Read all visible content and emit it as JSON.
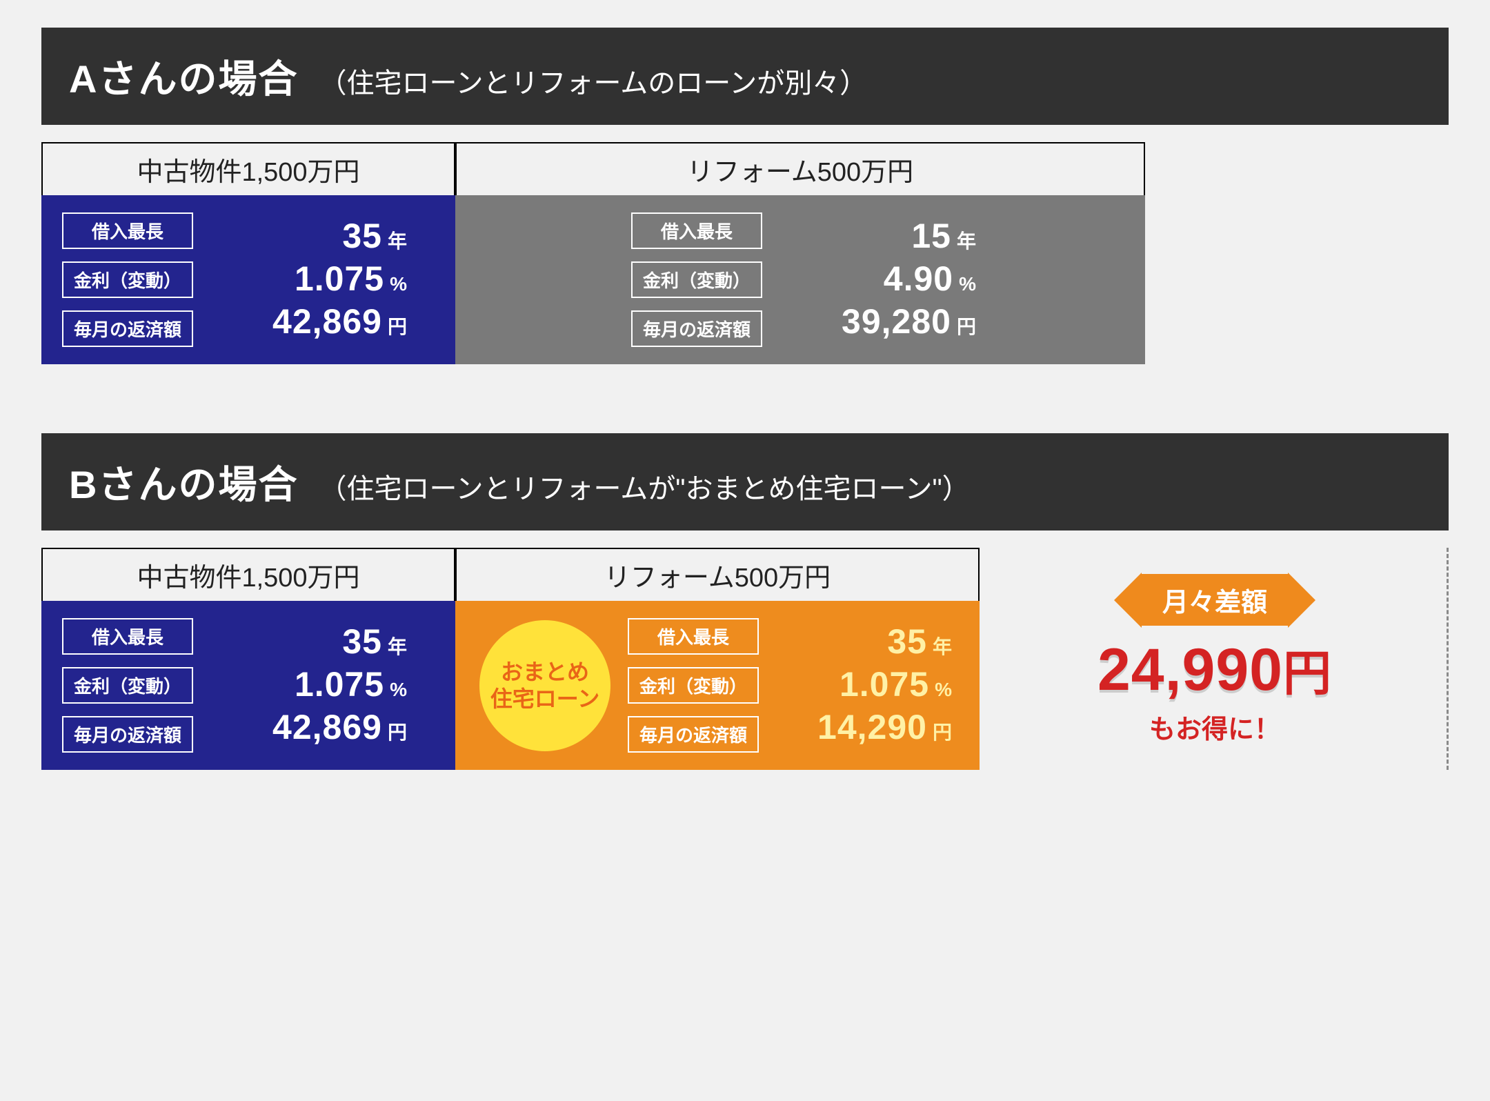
{
  "colors": {
    "page_bg": "#f1f1f1",
    "header_bg": "#313131",
    "header_text": "#ffffff",
    "panel_border": "#000000",
    "label_text": "#222222",
    "blue_panel_bg": "#23248e",
    "blue_panel_text": "#ffffff",
    "gray_panel_bg": "#7a7a7a",
    "gray_panel_text": "#ffffff",
    "orange_panel_bg": "#ee8c1e",
    "orange_panel_text": "#ffffff",
    "orange_value_text": "#fff1a6",
    "circle_bg": "#ffe23a",
    "circle_text": "#e96517",
    "arrow_color": "#ef8a1d",
    "savings_amount_color": "#d42323",
    "savings_caption_color": "#d42323",
    "dashed_border": "#8a8a8a"
  },
  "layout": {
    "section_a_blue_width": 600,
    "section_a_gray_width": 1000,
    "section_b_blue_width": 600,
    "section_b_orange_width": 760,
    "value_col_width_blue": 280,
    "value_col_width_gray": 280,
    "value_col_width_orange": 250,
    "arrow_head_size": 40,
    "arrow_height": 80
  },
  "sectionA": {
    "title": "Aさんの場合",
    "subtitle": "（住宅ローンとリフォームのローンが別々）",
    "left": {
      "header": "中古物件1,500万円",
      "rows": [
        {
          "label": "借入最長",
          "value": "35",
          "unit": "年"
        },
        {
          "label": "金利（変動）",
          "value": "1.075",
          "unit": "%"
        },
        {
          "label": "毎月の返済額",
          "value": "42,869",
          "unit": "円"
        }
      ]
    },
    "right": {
      "header": "リフォーム500万円",
      "rows": [
        {
          "label": "借入最長",
          "value": "15",
          "unit": "年"
        },
        {
          "label": "金利（変動）",
          "value": "4.90",
          "unit": "%"
        },
        {
          "label": "毎月の返済額",
          "value": "39,280",
          "unit": "円"
        }
      ]
    }
  },
  "sectionB": {
    "title": "Bさんの場合",
    "subtitle": "（住宅ローンとリフォームが\"おまとめ住宅ローン\"）",
    "left": {
      "header": "中古物件1,500万円",
      "rows": [
        {
          "label": "借入最長",
          "value": "35",
          "unit": "年"
        },
        {
          "label": "金利（変動）",
          "value": "1.075",
          "unit": "%"
        },
        {
          "label": "毎月の返済額",
          "value": "42,869",
          "unit": "円"
        }
      ]
    },
    "right": {
      "header": "リフォーム500万円",
      "circle_line1": "おまとめ",
      "circle_line2": "住宅ローン",
      "rows": [
        {
          "label": "借入最長",
          "value": "35",
          "unit": "年"
        },
        {
          "label": "金利（変動）",
          "value": "1.075",
          "unit": "%"
        },
        {
          "label": "毎月の返済額",
          "value": "14,290",
          "unit": "円"
        }
      ]
    },
    "savings": {
      "banner": "月々差額",
      "amount": "24,990",
      "amount_unit": "円",
      "caption": "もお得に！"
    }
  }
}
